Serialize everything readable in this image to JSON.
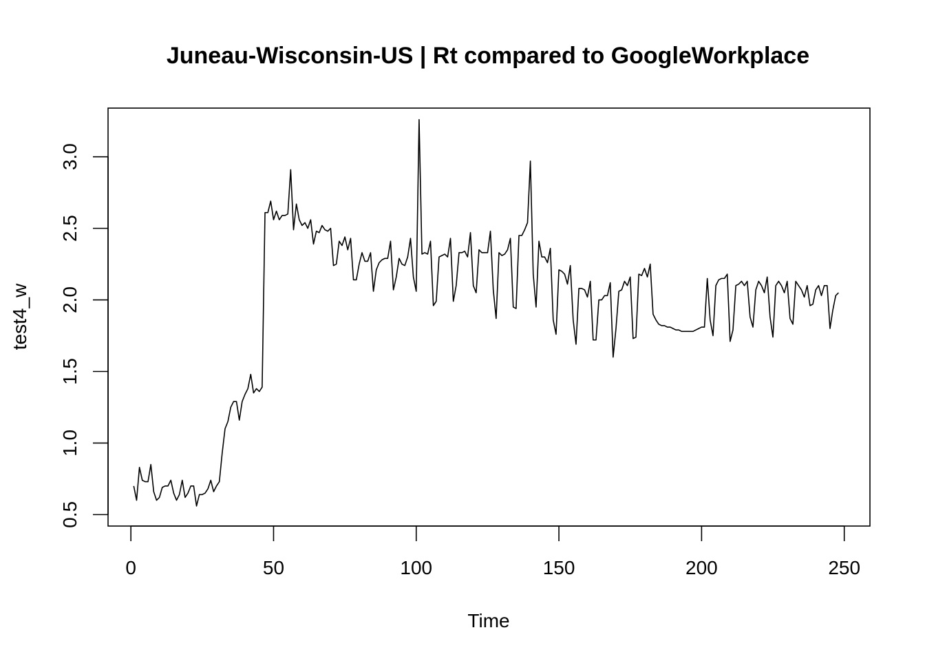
{
  "chart_data": {
    "type": "line",
    "title": "Juneau-Wisconsin-US | Rt compared to GoogleWorkplace",
    "xlabel": "Time",
    "ylabel": "test4_w",
    "xlim": [
      -8,
      259
    ],
    "ylim": [
      0.42,
      3.34
    ],
    "xticks": [
      0,
      50,
      100,
      150,
      200,
      250
    ],
    "yticks": [
      0.5,
      1.0,
      1.5,
      2.0,
      2.5,
      3.0
    ],
    "xtick_labels": [
      "0",
      "50",
      "100",
      "150",
      "200",
      "250"
    ],
    "ytick_labels": [
      "0.5",
      "1.0",
      "1.5",
      "2.0",
      "2.5",
      "3.0"
    ],
    "grid": false,
    "legend": "none",
    "line_color": "#000000",
    "series": [
      {
        "x_start": 1,
        "values": [
          0.7,
          0.6,
          0.83,
          0.74,
          0.73,
          0.73,
          0.85,
          0.66,
          0.6,
          0.62,
          0.69,
          0.7,
          0.7,
          0.74,
          0.65,
          0.6,
          0.64,
          0.74,
          0.62,
          0.65,
          0.7,
          0.7,
          0.56,
          0.64,
          0.64,
          0.65,
          0.68,
          0.74,
          0.66,
          0.7,
          0.73,
          0.93,
          1.1,
          1.15,
          1.25,
          1.29,
          1.29,
          1.16,
          1.29,
          1.34,
          1.38,
          1.48,
          1.35,
          1.38,
          1.36,
          1.39,
          2.61,
          2.61,
          2.69,
          2.56,
          2.62,
          2.56,
          2.59,
          2.59,
          2.6,
          2.91,
          2.49,
          2.67,
          2.56,
          2.52,
          2.54,
          2.5,
          2.56,
          2.39,
          2.48,
          2.47,
          2.52,
          2.49,
          2.48,
          2.5,
          2.24,
          2.25,
          2.41,
          2.38,
          2.44,
          2.35,
          2.43,
          2.14,
          2.14,
          2.25,
          2.33,
          2.27,
          2.27,
          2.33,
          2.06,
          2.21,
          2.26,
          2.28,
          2.29,
          2.29,
          2.41,
          2.07,
          2.16,
          2.29,
          2.25,
          2.24,
          2.3,
          2.43,
          2.16,
          2.06,
          3.26,
          2.32,
          2.33,
          2.32,
          2.41,
          1.96,
          1.99,
          2.3,
          2.31,
          2.32,
          2.3,
          2.43,
          1.99,
          2.1,
          2.33,
          2.33,
          2.34,
          2.3,
          2.47,
          2.1,
          2.05,
          2.35,
          2.33,
          2.33,
          2.33,
          2.48,
          2.07,
          1.87,
          2.33,
          2.31,
          2.32,
          2.35,
          2.43,
          1.95,
          1.94,
          2.45,
          2.45,
          2.49,
          2.54,
          2.97,
          2.18,
          1.95,
          2.41,
          2.3,
          2.3,
          2.26,
          2.36,
          1.86,
          1.76,
          2.21,
          2.2,
          2.18,
          2.11,
          2.24,
          1.86,
          1.69,
          2.08,
          2.08,
          2.07,
          2.02,
          2.13,
          1.72,
          1.72,
          2.0,
          2.0,
          2.03,
          2.03,
          2.12,
          1.6,
          1.8,
          2.06,
          2.07,
          2.13,
          2.1,
          2.16,
          1.73,
          1.74,
          2.18,
          2.17,
          2.22,
          2.16,
          2.25,
          1.9,
          1.86,
          1.83,
          1.82,
          1.82,
          1.81,
          1.81,
          1.8,
          1.79,
          1.79,
          1.78,
          1.78,
          1.78,
          1.78,
          1.78,
          1.79,
          1.8,
          1.81,
          1.81,
          2.15,
          1.86,
          1.75,
          2.1,
          2.14,
          2.15,
          2.15,
          2.18,
          1.71,
          1.79,
          2.1,
          2.11,
          2.13,
          2.1,
          2.13,
          1.88,
          1.81,
          2.07,
          2.13,
          2.1,
          2.05,
          2.16,
          1.88,
          1.74,
          2.1,
          2.13,
          2.1,
          2.05,
          2.13,
          1.87,
          1.83,
          2.13,
          2.1,
          2.07,
          2.02,
          2.1,
          1.96,
          1.97,
          2.07,
          2.1,
          2.03,
          2.1,
          2.1,
          1.8,
          1.93,
          2.03,
          2.05
        ]
      }
    ]
  }
}
